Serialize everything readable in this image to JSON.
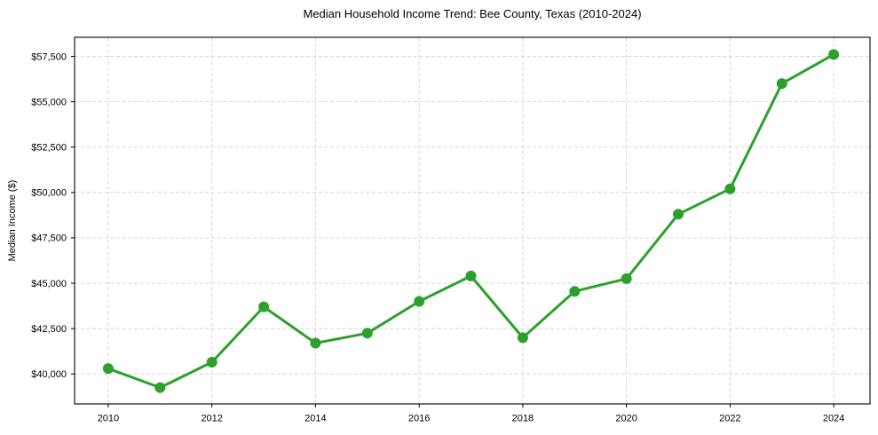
{
  "chart_data": {
    "type": "line",
    "title": "Median Household Income Trend: Bee County, Texas (2010-2024)",
    "xlabel": "",
    "ylabel": "Median Income ($)",
    "x": [
      2010,
      2011,
      2012,
      2013,
      2014,
      2015,
      2016,
      2017,
      2018,
      2019,
      2020,
      2021,
      2022,
      2023,
      2024
    ],
    "values": [
      40300,
      39250,
      40650,
      43700,
      41700,
      42250,
      44000,
      45400,
      42000,
      44550,
      45250,
      48800,
      50200,
      56000,
      57600
    ],
    "x_ticks": [
      2010,
      2012,
      2014,
      2016,
      2018,
      2020,
      2022,
      2024
    ],
    "x_tick_labels": [
      "2010",
      "2012",
      "2014",
      "2016",
      "2018",
      "2020",
      "2022",
      "2024"
    ],
    "y_ticks": [
      40000,
      42500,
      45000,
      47500,
      50000,
      52500,
      55000,
      57500
    ],
    "y_tick_labels": [
      "$40,000",
      "$42,500",
      "$45,000",
      "$47,500",
      "$50,000",
      "$52,500",
      "$55,000",
      "$57,500"
    ],
    "xlim": [
      2009.35,
      2024.7
    ],
    "ylim": [
      38350,
      58550
    ],
    "grid": true,
    "legend": "none",
    "line_color": "#2ca02c",
    "marker": "circle",
    "marker_radius": 6,
    "line_width": 3,
    "grid_color": "#d0d0d0",
    "axis_color": "#000000",
    "text_color": "#000000",
    "background_color": "#ffffff"
  }
}
